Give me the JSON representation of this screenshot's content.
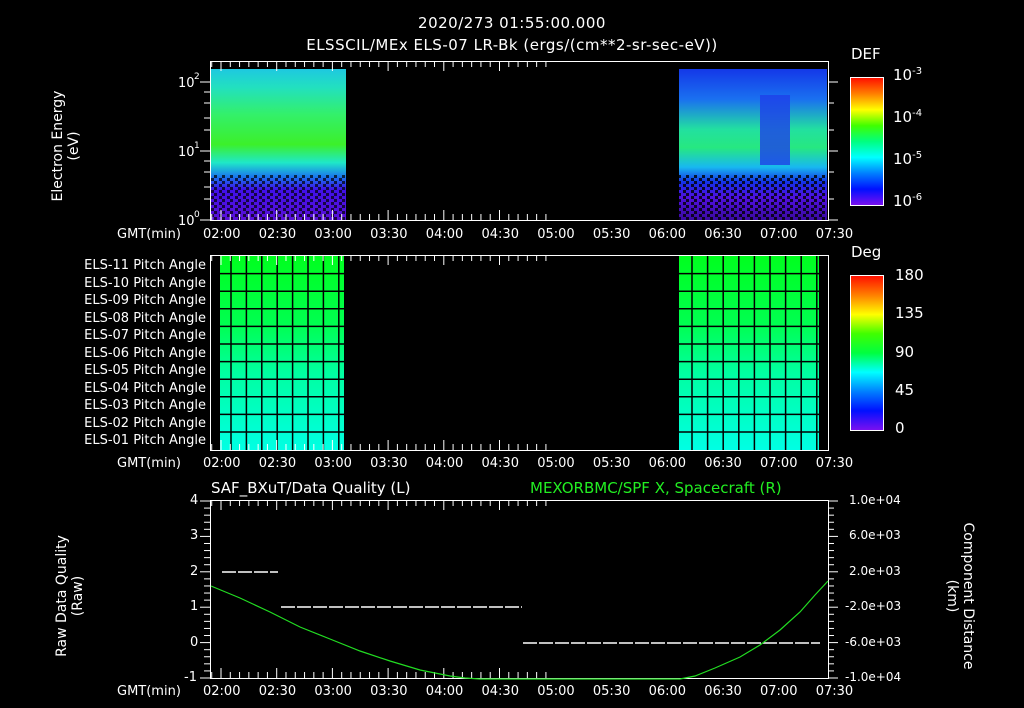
{
  "header": {
    "datetime": "2020/273 01:55:00.000",
    "subtitle": "ELSSCIL/MEx ELS-07 LR-Bk  (ergs/(cm**2-sr-sec-eV))"
  },
  "time_axis": {
    "label": "GMT(min)",
    "ticks": [
      "02:00",
      "02:30",
      "03:00",
      "03:30",
      "04:00",
      "04:30",
      "05:00",
      "05:30",
      "06:00",
      "06:30",
      "07:00",
      "07:30"
    ]
  },
  "panel1": {
    "ylabel": "Electron Energy",
    "yunit": "(eV)",
    "yticks": [
      "10^0",
      "10^1",
      "10^2"
    ],
    "colorbar_title": "DEF",
    "colorbar_ticks": [
      "10^-3",
      "10^-4",
      "10^-5",
      "10^-6"
    ]
  },
  "panel2": {
    "rows": [
      "ELS-11 Pitch Angle",
      "ELS-10 Pitch Angle",
      "ELS-09 Pitch Angle",
      "ELS-08 Pitch Angle",
      "ELS-07 Pitch Angle",
      "ELS-06 Pitch Angle",
      "ELS-05 Pitch Angle",
      "ELS-04 Pitch Angle",
      "ELS-03 Pitch Angle",
      "ELS-02 Pitch Angle",
      "ELS-01 Pitch Angle"
    ],
    "colorbar_title": "Deg",
    "colorbar_ticks": [
      "180",
      "135",
      "90",
      "45",
      "0"
    ]
  },
  "panel3": {
    "left_title": "SAF_BXuT/Data Quality (L)",
    "right_title": "MEXORBMC/SPF X, Spacecraft (R)",
    "left_color": "#ffffff",
    "right_color": "#22dd22",
    "ylabel_left": "Raw Data Quality",
    "yunit_left": "(Raw)",
    "yticks_left": [
      "4",
      "3",
      "2",
      "1",
      "0",
      "-1"
    ],
    "ylabel_right": "Component Distance",
    "yunit_right": "(km)",
    "yticks_right": [
      "1.0e+04",
      "6.0e+03",
      "2.0e+03",
      "-2.0e+03",
      "-6.0e+03",
      "-1.0e+04"
    ]
  },
  "chart_data": [
    {
      "type": "heatmap",
      "title": "ELSSCIL/MEx ELS-07 LR-Bk (ergs/(cm**2-sr-sec-eV))",
      "xlabel": "GMT(min)",
      "ylabel": "Electron Energy (eV)",
      "yscale": "log",
      "ylim": [
        1,
        150
      ],
      "colorbar": {
        "label": "DEF",
        "range": [
          1e-06,
          0.001
        ],
        "scale": "log"
      },
      "data_intervals": [
        [
          "01:55",
          "03:10"
        ],
        [
          "06:15",
          "07:40"
        ]
      ],
      "notes": "Peak DEF ~1e-4 at 20-60 eV in first interval; ~5e-5 at 10-40 eV in second interval; gap 03:10-06:15 no data"
    },
    {
      "type": "heatmap",
      "title": "ELS Pitch Angle",
      "ylabel": "Anode ELS-01..ELS-11",
      "colorbar": {
        "label": "Deg",
        "range": [
          0,
          180
        ]
      },
      "data_intervals": [
        [
          "01:55",
          "03:10"
        ],
        [
          "06:15",
          "07:40"
        ]
      ],
      "values_by_anode": {
        "ELS-01": 55,
        "ELS-02": 58,
        "ELS-03": 62,
        "ELS-04": 66,
        "ELS-05": 70,
        "ELS-06": 74,
        "ELS-07": 78,
        "ELS-08": 82,
        "ELS-09": 86,
        "ELS-10": 90,
        "ELS-11": 92
      }
    },
    {
      "type": "line",
      "title": "SAF_BXuT/Data Quality (L) ; MEXORBMC/SPF X, Spacecraft (R)",
      "xlabel": "GMT(min)",
      "series": [
        {
          "name": "Data Quality (L)",
          "axis": "left",
          "x": [
            "02:00",
            "02:30",
            "02:31",
            "04:47",
            "04:48",
            "07:30"
          ],
          "values": [
            2,
            2,
            1,
            1,
            0,
            0
          ]
        },
        {
          "name": "SPF X (R, km)",
          "axis": "right",
          "x": [
            "01:55",
            "02:30",
            "03:00",
            "03:30",
            "04:00",
            "04:30",
            "05:00",
            "05:30",
            "06:00",
            "06:30",
            "07:00",
            "07:30",
            "07:40"
          ],
          "values": [
            3600,
            1200,
            -1500,
            -4300,
            -7000,
            -9400,
            -11500,
            -13000,
            -12500,
            -9500,
            -6000,
            -500,
            2000
          ]
        }
      ],
      "ylim_left": [
        -1,
        4
      ],
      "ylim_right": [
        -10000,
        10000
      ]
    }
  ]
}
